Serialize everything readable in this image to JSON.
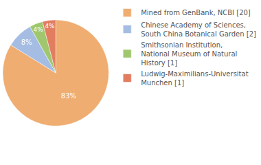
{
  "chart_data": {
    "type": "pie",
    "categories": [
      "Mined from GenBank, NCBI [20]",
      "Chinese Academy of Sciences, South China Botanical Garden [2]",
      "Smithsonian Institution, National Museum of Natural History [1]",
      "Ludwig-Maximilians-Universitat Munchen [1]"
    ],
    "values": [
      83,
      8,
      4,
      4
    ],
    "value_labels": [
      "83%",
      "8%",
      "4%",
      "4%"
    ],
    "colors": [
      "#efad72",
      "#a5bde3",
      "#a0c76e",
      "#e27d60"
    ],
    "data_labels": true,
    "legend": "top right"
  }
}
